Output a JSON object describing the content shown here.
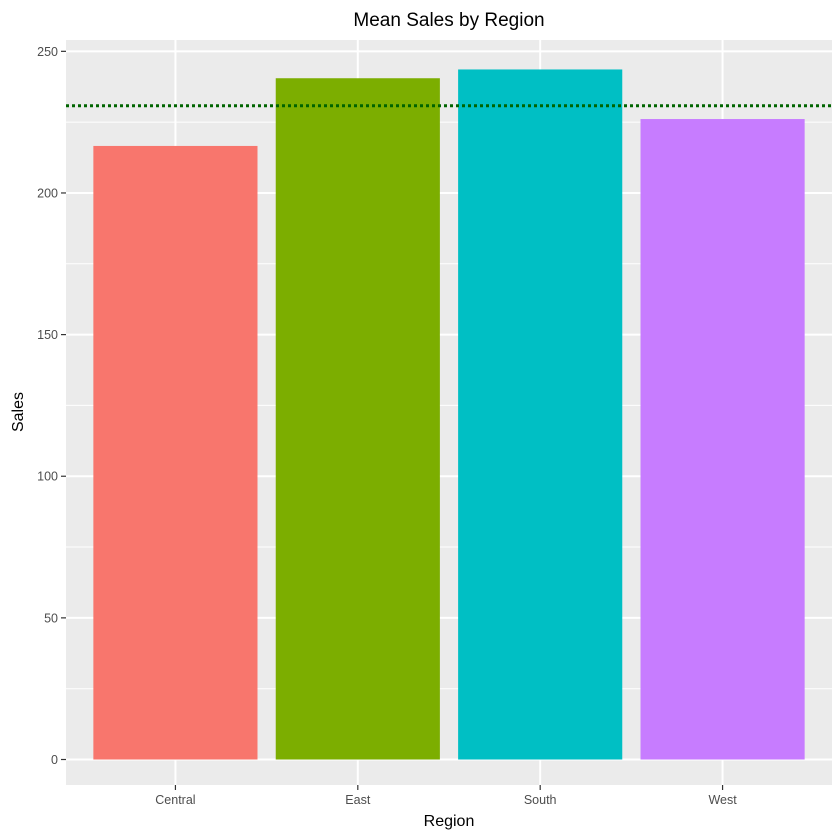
{
  "chart_data": {
    "type": "bar",
    "title": "Mean Sales by Region",
    "xlabel": "Region",
    "ylabel": "Sales",
    "categories": [
      "Central",
      "East",
      "South",
      "West"
    ],
    "values": [
      216.6,
      240.5,
      243.6,
      226.1
    ],
    "bar_colors": [
      "#F8766D",
      "#7CAE00",
      "#00BFC4",
      "#C77CFF"
    ],
    "ylim": [
      -9,
      254
    ],
    "yticks": [
      0,
      50,
      100,
      150,
      200,
      250
    ],
    "reference_line": {
      "value": 230.8,
      "color": "#006400",
      "style": "dotted"
    },
    "grid": true,
    "legend": "none",
    "panel_background": "#EBEBEB"
  }
}
